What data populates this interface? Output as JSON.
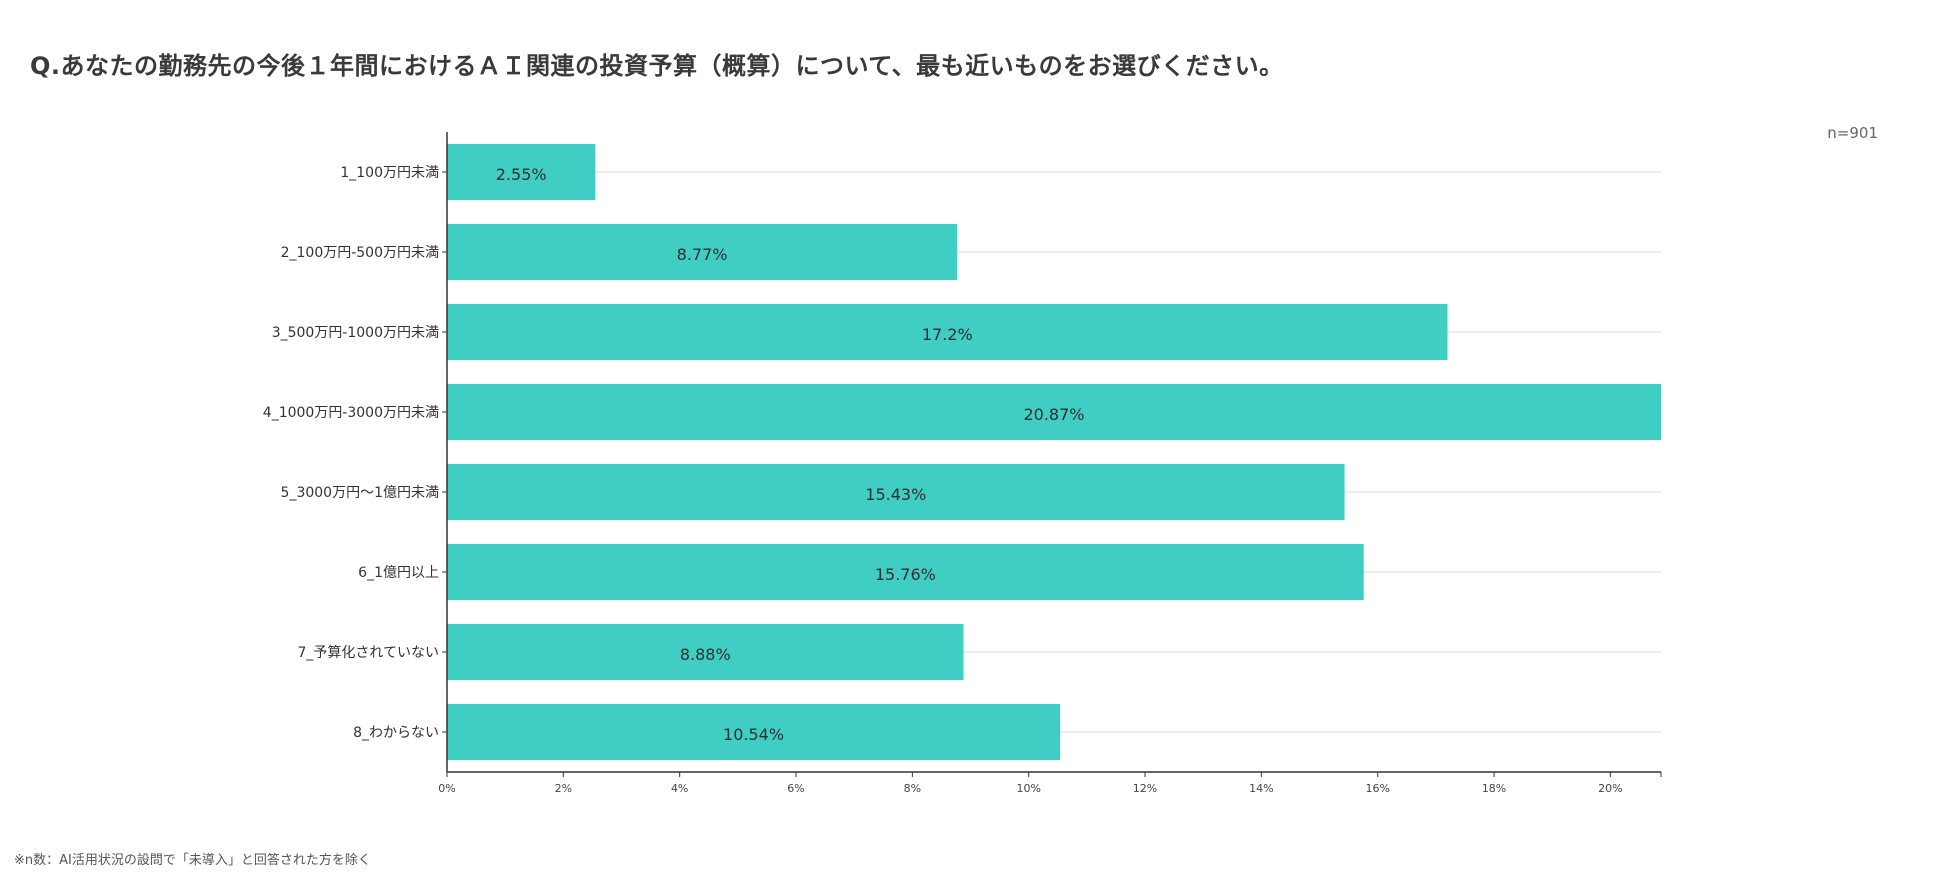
{
  "title": "Q.あなたの勤務先の今後１年間におけるＡＩ関連の投資予算（概算）について、最も近いものをお選びください。",
  "n_label": "n=901",
  "footnote": "※n数：AI活用状況の設問で「未導入」と回答された方を除く",
  "colors": {
    "bar": "#40cdc4",
    "grid": "#e6e6e6",
    "axis": "#333333"
  },
  "chart_data": {
    "type": "bar",
    "orientation": "horizontal",
    "categories": [
      "1_100万円未満",
      "2_100万円-500万円未満",
      "3_500万円-1000万円未満",
      "4_1000万円-3000万円未満",
      "5_3000万円〜1億円未満",
      "6_1億円以上",
      "7_予算化されていない",
      "8_わからない"
    ],
    "values": [
      2.55,
      8.77,
      17.2,
      20.87,
      15.43,
      15.76,
      8.88,
      10.54
    ],
    "data_labels": [
      "2.55%",
      "8.77%",
      "17.2%",
      "20.87%",
      "15.43%",
      "15.76%",
      "8.88%",
      "10.54%"
    ],
    "xlim": [
      0,
      20.87
    ],
    "xticks": [
      0,
      2,
      4,
      6,
      8,
      10,
      12,
      14,
      16,
      18,
      20
    ],
    "xtick_labels": [
      "0%",
      "2%",
      "4%",
      "6%",
      "8%",
      "10%",
      "12%",
      "14%",
      "16%",
      "18%",
      "20%"
    ],
    "grid": true
  }
}
